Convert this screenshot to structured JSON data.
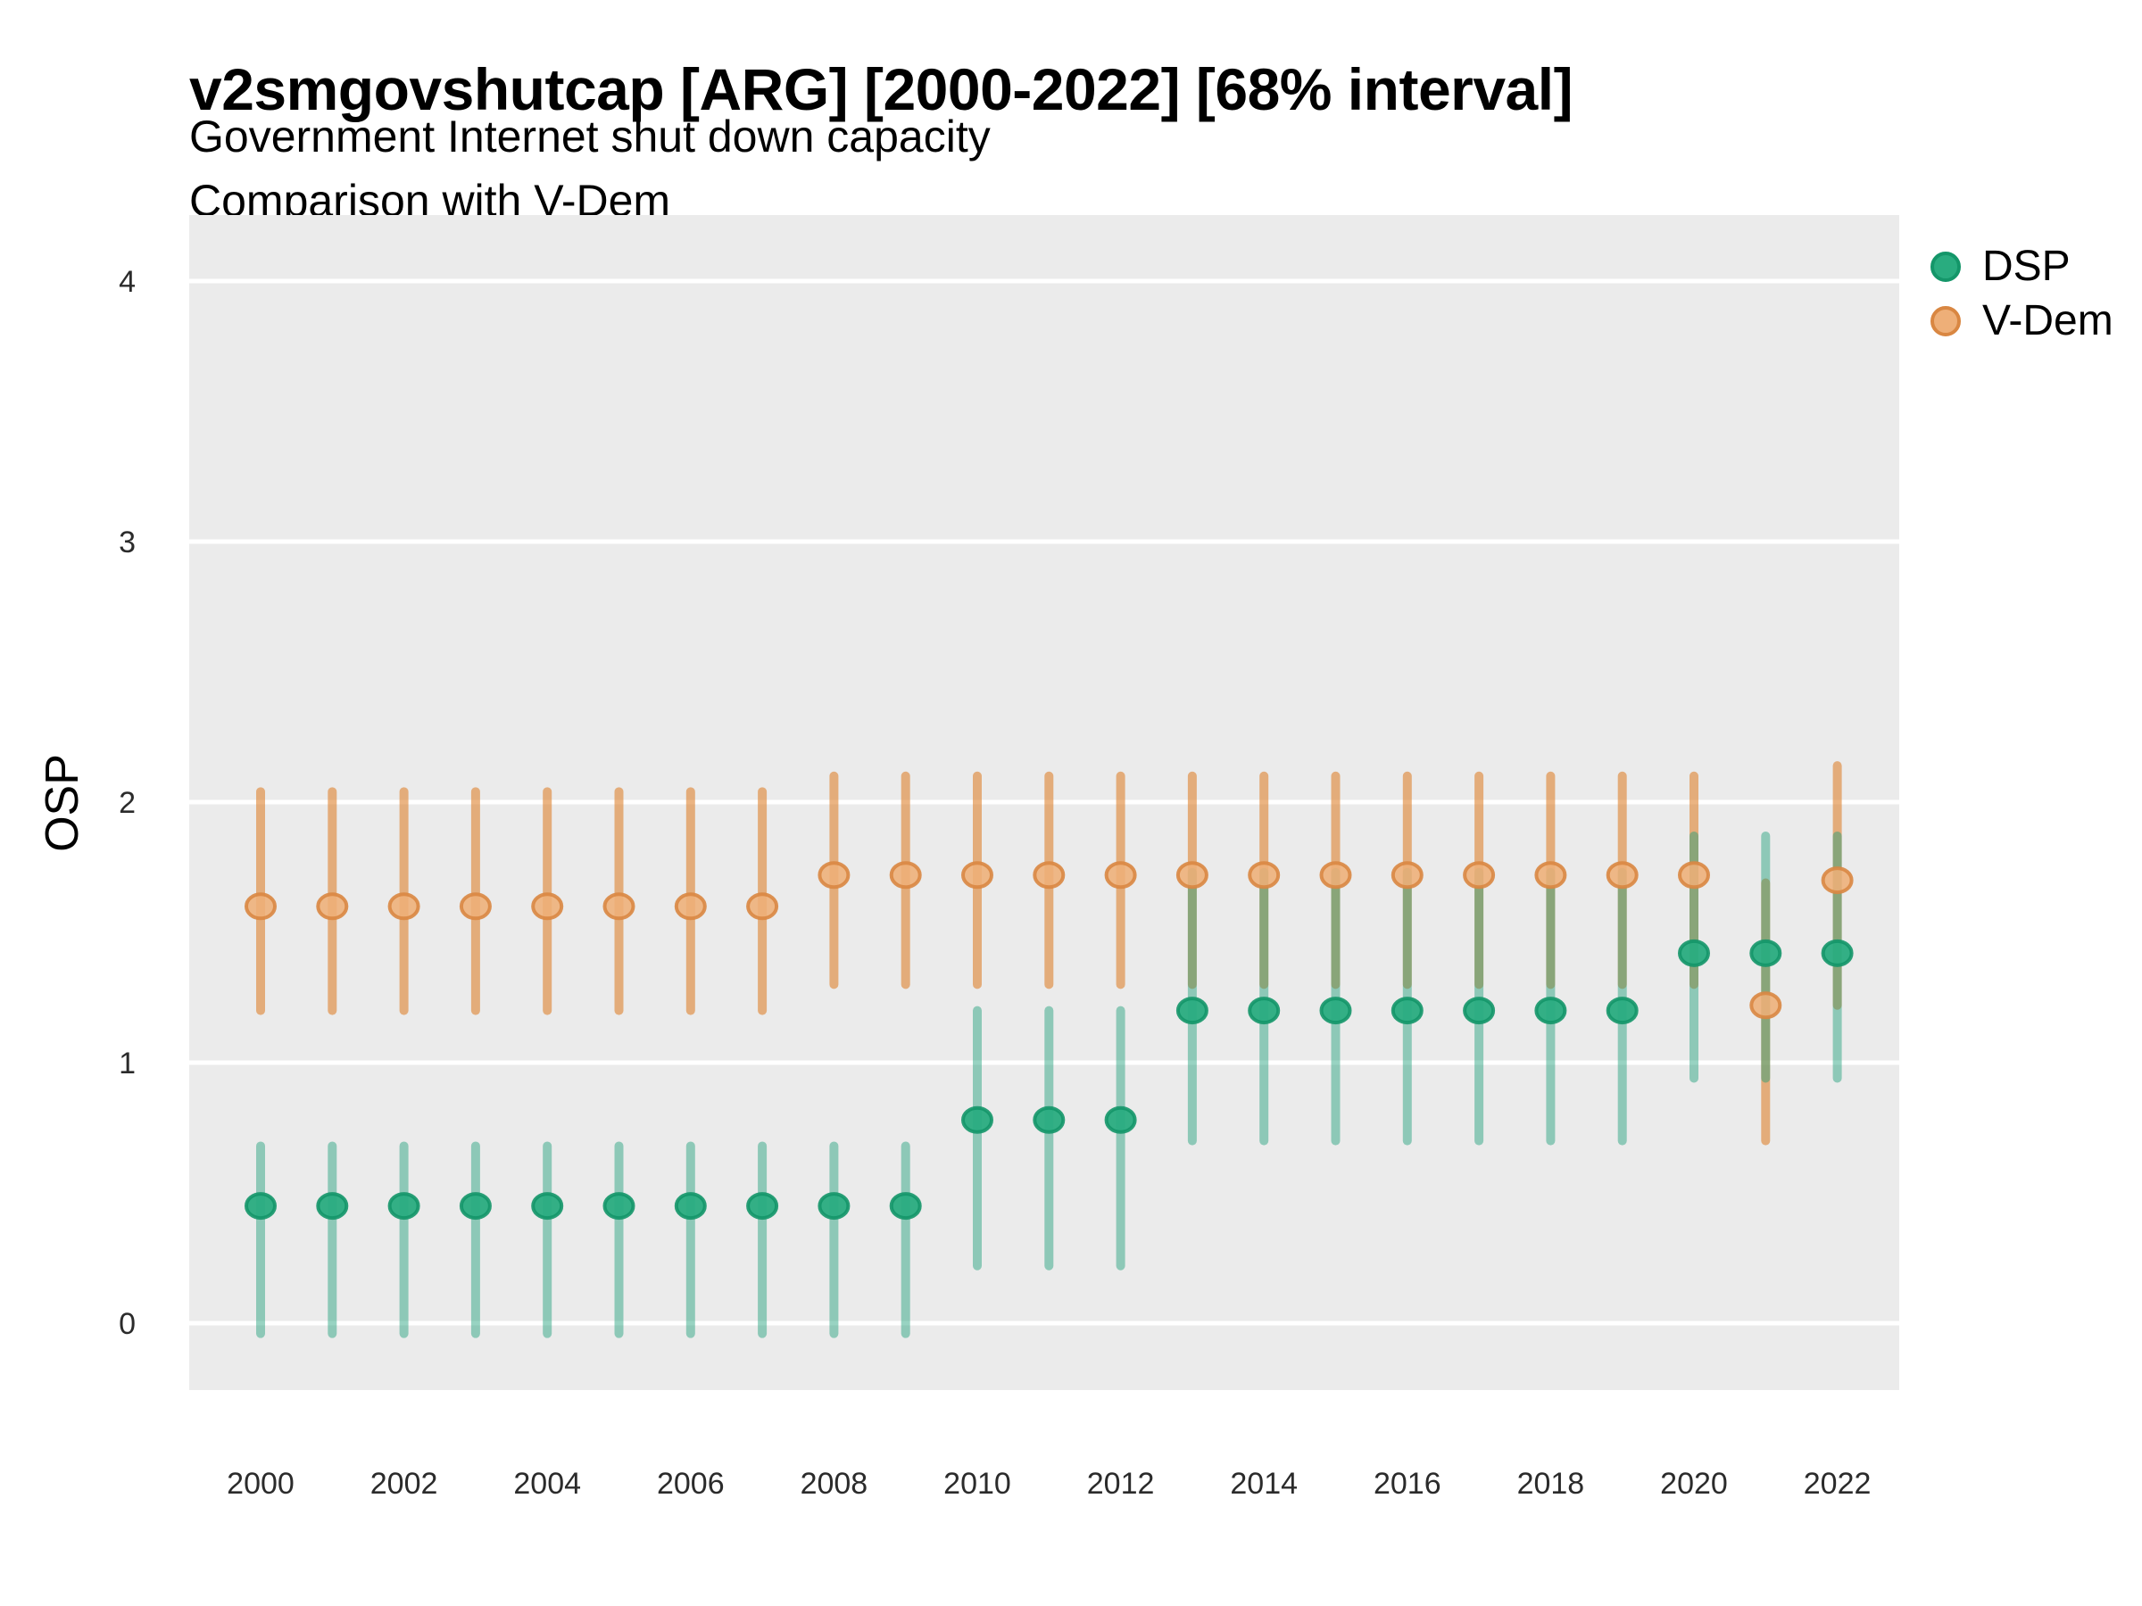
{
  "header": {
    "title": "v2smgovshutcap [ARG] [2000-2022] [68% interval]",
    "subtitle1": "Government Internet shut down capacity",
    "subtitle2": "Comparison with V-Dem"
  },
  "axes": {
    "y_label": "OSP",
    "x_label": "",
    "y_ticks": [
      4,
      3,
      2,
      1,
      0
    ],
    "x_ticks": [
      2000,
      2002,
      2004,
      2006,
      2008,
      2010,
      2012,
      2014,
      2016,
      2018,
      2020,
      2022
    ]
  },
  "legend": {
    "items": [
      {
        "label": "DSP",
        "fill": "#29AC7F",
        "stroke": "#149669"
      },
      {
        "label": "V-Dem",
        "fill": "#EEAF78",
        "stroke": "#D98742"
      }
    ]
  },
  "colors": {
    "panel_bg": "#EBEBEB",
    "grid": "#FFFFFF",
    "dsp_line": "rgba(27,158,119,0.45)",
    "dsp_fill": "#29AC7F",
    "dsp_stroke": "#149669",
    "vdem_line": "rgba(222,134,54,0.62)",
    "vdem_fill": "#EEAF78",
    "vdem_stroke": "#D98742",
    "tick_text": "#2B2B2B"
  },
  "chart_data": {
    "type": "pointrange",
    "title": "v2smgovshutcap [ARG] [2000-2022] [68% interval]",
    "subtitle": "Government Internet shut down capacity / Comparison with V-Dem",
    "interval": "68%",
    "xlabel": "",
    "ylabel": "OSP",
    "ylim": [
      -0.27,
      4.27
    ],
    "xlim": [
      1999,
      2023
    ],
    "grid": "horizontal-major-only",
    "legend_position": "right-top",
    "x": [
      2000,
      2001,
      2002,
      2003,
      2004,
      2005,
      2006,
      2007,
      2008,
      2009,
      2010,
      2011,
      2012,
      2013,
      2014,
      2015,
      2016,
      2017,
      2018,
      2019,
      2020,
      2021,
      2022
    ],
    "series": [
      {
        "name": "DSP",
        "points": [
          {
            "year": 2000,
            "est": 0.45,
            "lo": -0.04,
            "hi": 0.68
          },
          {
            "year": 2001,
            "est": 0.45,
            "lo": -0.04,
            "hi": 0.68
          },
          {
            "year": 2002,
            "est": 0.45,
            "lo": -0.04,
            "hi": 0.68
          },
          {
            "year": 2003,
            "est": 0.45,
            "lo": -0.04,
            "hi": 0.68
          },
          {
            "year": 2004,
            "est": 0.45,
            "lo": -0.04,
            "hi": 0.68
          },
          {
            "year": 2005,
            "est": 0.45,
            "lo": -0.04,
            "hi": 0.68
          },
          {
            "year": 2006,
            "est": 0.45,
            "lo": -0.04,
            "hi": 0.68
          },
          {
            "year": 2007,
            "est": 0.45,
            "lo": -0.04,
            "hi": 0.68
          },
          {
            "year": 2008,
            "est": 0.45,
            "lo": -0.04,
            "hi": 0.68
          },
          {
            "year": 2009,
            "est": 0.45,
            "lo": -0.04,
            "hi": 0.68
          },
          {
            "year": 2010,
            "est": 0.78,
            "lo": 0.22,
            "hi": 1.2
          },
          {
            "year": 2011,
            "est": 0.78,
            "lo": 0.22,
            "hi": 1.2
          },
          {
            "year": 2012,
            "est": 0.78,
            "lo": 0.22,
            "hi": 1.2
          },
          {
            "year": 2013,
            "est": 1.2,
            "lo": 0.7,
            "hi": 1.73
          },
          {
            "year": 2014,
            "est": 1.2,
            "lo": 0.7,
            "hi": 1.73
          },
          {
            "year": 2015,
            "est": 1.2,
            "lo": 0.7,
            "hi": 1.73
          },
          {
            "year": 2016,
            "est": 1.2,
            "lo": 0.7,
            "hi": 1.73
          },
          {
            "year": 2017,
            "est": 1.2,
            "lo": 0.7,
            "hi": 1.73
          },
          {
            "year": 2018,
            "est": 1.2,
            "lo": 0.7,
            "hi": 1.73
          },
          {
            "year": 2019,
            "est": 1.2,
            "lo": 0.7,
            "hi": 1.73
          },
          {
            "year": 2020,
            "est": 1.42,
            "lo": 0.94,
            "hi": 1.87
          },
          {
            "year": 2021,
            "est": 1.42,
            "lo": 0.94,
            "hi": 1.87
          },
          {
            "year": 2022,
            "est": 1.42,
            "lo": 0.94,
            "hi": 1.87
          }
        ]
      },
      {
        "name": "V-Dem",
        "points": [
          {
            "year": 2000,
            "est": 1.6,
            "lo": 1.2,
            "hi": 2.04
          },
          {
            "year": 2001,
            "est": 1.6,
            "lo": 1.2,
            "hi": 2.04
          },
          {
            "year": 2002,
            "est": 1.6,
            "lo": 1.2,
            "hi": 2.04
          },
          {
            "year": 2003,
            "est": 1.6,
            "lo": 1.2,
            "hi": 2.04
          },
          {
            "year": 2004,
            "est": 1.6,
            "lo": 1.2,
            "hi": 2.04
          },
          {
            "year": 2005,
            "est": 1.6,
            "lo": 1.2,
            "hi": 2.04
          },
          {
            "year": 2006,
            "est": 1.6,
            "lo": 1.2,
            "hi": 2.04
          },
          {
            "year": 2007,
            "est": 1.6,
            "lo": 1.2,
            "hi": 2.04
          },
          {
            "year": 2008,
            "est": 1.72,
            "lo": 1.3,
            "hi": 2.1
          },
          {
            "year": 2009,
            "est": 1.72,
            "lo": 1.3,
            "hi": 2.1
          },
          {
            "year": 2010,
            "est": 1.72,
            "lo": 1.3,
            "hi": 2.1
          },
          {
            "year": 2011,
            "est": 1.72,
            "lo": 1.3,
            "hi": 2.1
          },
          {
            "year": 2012,
            "est": 1.72,
            "lo": 1.3,
            "hi": 2.1
          },
          {
            "year": 2013,
            "est": 1.72,
            "lo": 1.3,
            "hi": 2.1
          },
          {
            "year": 2014,
            "est": 1.72,
            "lo": 1.3,
            "hi": 2.1
          },
          {
            "year": 2015,
            "est": 1.72,
            "lo": 1.3,
            "hi": 2.1
          },
          {
            "year": 2016,
            "est": 1.72,
            "lo": 1.3,
            "hi": 2.1
          },
          {
            "year": 2017,
            "est": 1.72,
            "lo": 1.3,
            "hi": 2.1
          },
          {
            "year": 2018,
            "est": 1.72,
            "lo": 1.3,
            "hi": 2.1
          },
          {
            "year": 2019,
            "est": 1.72,
            "lo": 1.3,
            "hi": 2.1
          },
          {
            "year": 2020,
            "est": 1.72,
            "lo": 1.3,
            "hi": 2.1
          },
          {
            "year": 2021,
            "est": 1.22,
            "lo": 0.7,
            "hi": 1.69
          },
          {
            "year": 2022,
            "est": 1.7,
            "lo": 1.22,
            "hi": 2.14
          }
        ]
      }
    ]
  }
}
